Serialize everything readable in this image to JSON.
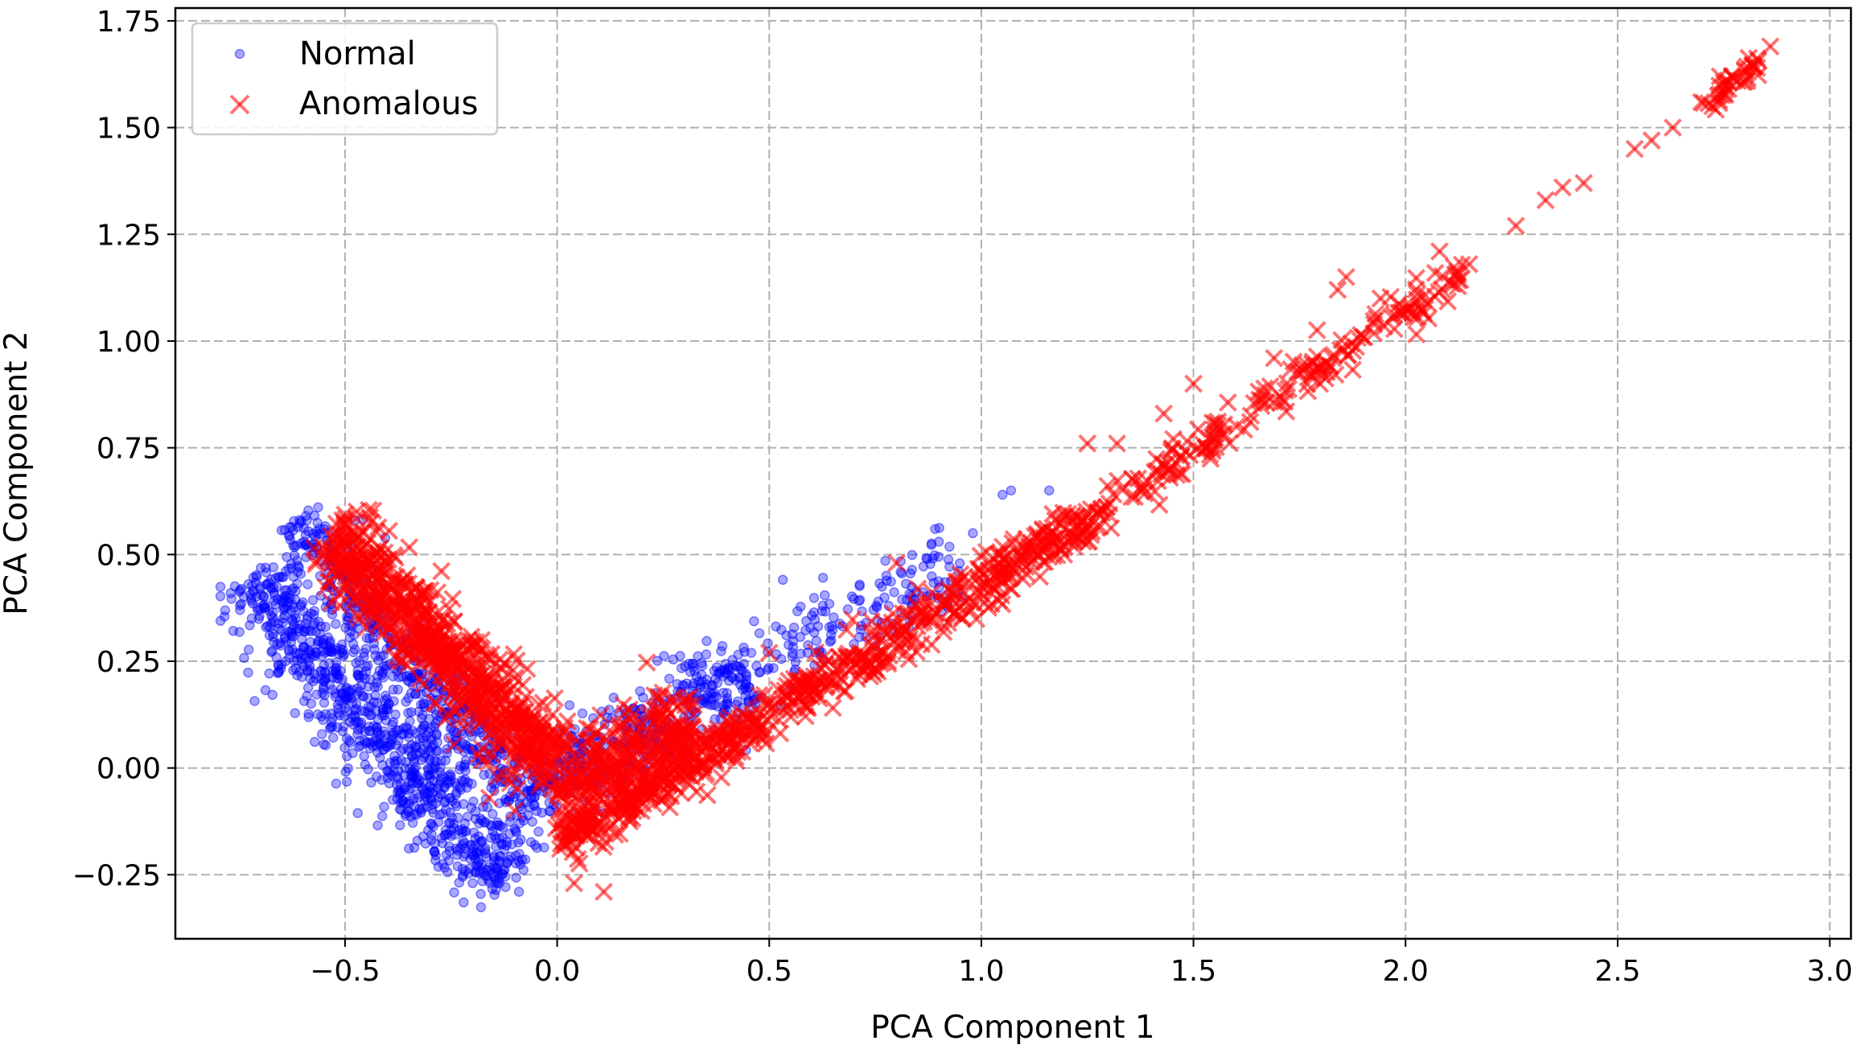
{
  "chart_data": {
    "type": "scatter",
    "title": "",
    "xlabel": "PCA Component 1",
    "ylabel": "PCA Component 2",
    "xlim": [
      -0.9,
      3.05
    ],
    "ylim": [
      -0.4,
      1.78
    ],
    "xticks": [
      -0.5,
      0.0,
      0.5,
      1.0,
      1.5,
      2.0,
      2.5,
      3.0
    ],
    "xtick_labels": [
      "−0.5",
      "0.0",
      "0.5",
      "1.0",
      "1.5",
      "2.0",
      "2.5",
      "3.0"
    ],
    "yticks": [
      -0.25,
      0.0,
      0.25,
      0.5,
      0.75,
      1.0,
      1.25,
      1.5,
      1.75
    ],
    "ytick_labels": [
      "−0.25",
      "0.00",
      "0.25",
      "0.50",
      "0.75",
      "1.00",
      "1.25",
      "1.50",
      "1.75"
    ],
    "grid": true,
    "legend_position": "top-left",
    "series": [
      {
        "name": "Normal",
        "marker": "circle",
        "color": "#0000ff",
        "clusters": [
          {
            "from": [
              -0.72,
              0.44
            ],
            "to": [
              -0.12,
              -0.27
            ],
            "spread": 0.055,
            "count": 900
          },
          {
            "from": [
              -0.62,
              0.57
            ],
            "to": [
              -0.05,
              -0.1
            ],
            "spread": 0.04,
            "count": 500
          },
          {
            "from": [
              -0.05,
              -0.05
            ],
            "to": [
              0.45,
              0.22
            ],
            "spread": 0.05,
            "count": 350
          },
          {
            "from": [
              0.3,
              0.18
            ],
            "to": [
              0.95,
              0.47
            ],
            "spread": 0.045,
            "count": 200
          }
        ],
        "points": [
          [
            1.05,
            0.64
          ],
          [
            1.07,
            0.65
          ],
          [
            1.16,
            0.65
          ],
          [
            0.98,
            0.55
          ],
          [
            0.9,
            0.53
          ],
          [
            -0.59,
            0.58
          ],
          [
            -0.7,
            0.42
          ],
          [
            -0.09,
            -0.29
          ]
        ]
      },
      {
        "name": "Anomalous",
        "marker": "x",
        "color": "#ff0000",
        "clusters": [
          {
            "from": [
              -0.53,
              0.55
            ],
            "to": [
              -0.02,
              0.01
            ],
            "spread": 0.045,
            "count": 700
          },
          {
            "from": [
              0.0,
              -0.18
            ],
            "to": [
              1.25,
              0.58
            ],
            "spread": 0.025,
            "count": 650
          },
          {
            "from": [
              0.0,
              -0.08
            ],
            "to": [
              0.32,
              0.12
            ],
            "spread": 0.05,
            "count": 300
          },
          {
            "from": [
              1.25,
              0.58
            ],
            "to": [
              2.15,
              1.17
            ],
            "spread": 0.02,
            "count": 200
          },
          {
            "from": [
              2.7,
              1.55
            ],
            "to": [
              2.84,
              1.66
            ],
            "spread": 0.012,
            "count": 40
          }
        ],
        "points": [
          [
            0.04,
            -0.27
          ],
          [
            0.11,
            -0.29
          ],
          [
            -0.1,
            -0.1
          ],
          [
            -0.16,
            -0.07
          ],
          [
            1.25,
            0.76
          ],
          [
            1.32,
            0.76
          ],
          [
            1.43,
            0.83
          ],
          [
            1.5,
            0.9
          ],
          [
            1.69,
            0.96
          ],
          [
            1.84,
            1.12
          ],
          [
            1.86,
            1.15
          ],
          [
            2.08,
            1.21
          ],
          [
            2.15,
            1.18
          ],
          [
            2.26,
            1.27
          ],
          [
            2.33,
            1.33
          ],
          [
            2.37,
            1.36
          ],
          [
            2.42,
            1.37
          ],
          [
            2.54,
            1.45
          ],
          [
            2.58,
            1.47
          ],
          [
            2.63,
            1.5
          ],
          [
            2.86,
            1.69
          ],
          [
            0.8,
            0.48
          ],
          [
            0.85,
            0.42
          ],
          [
            0.5,
            0.27
          ]
        ]
      }
    ]
  }
}
